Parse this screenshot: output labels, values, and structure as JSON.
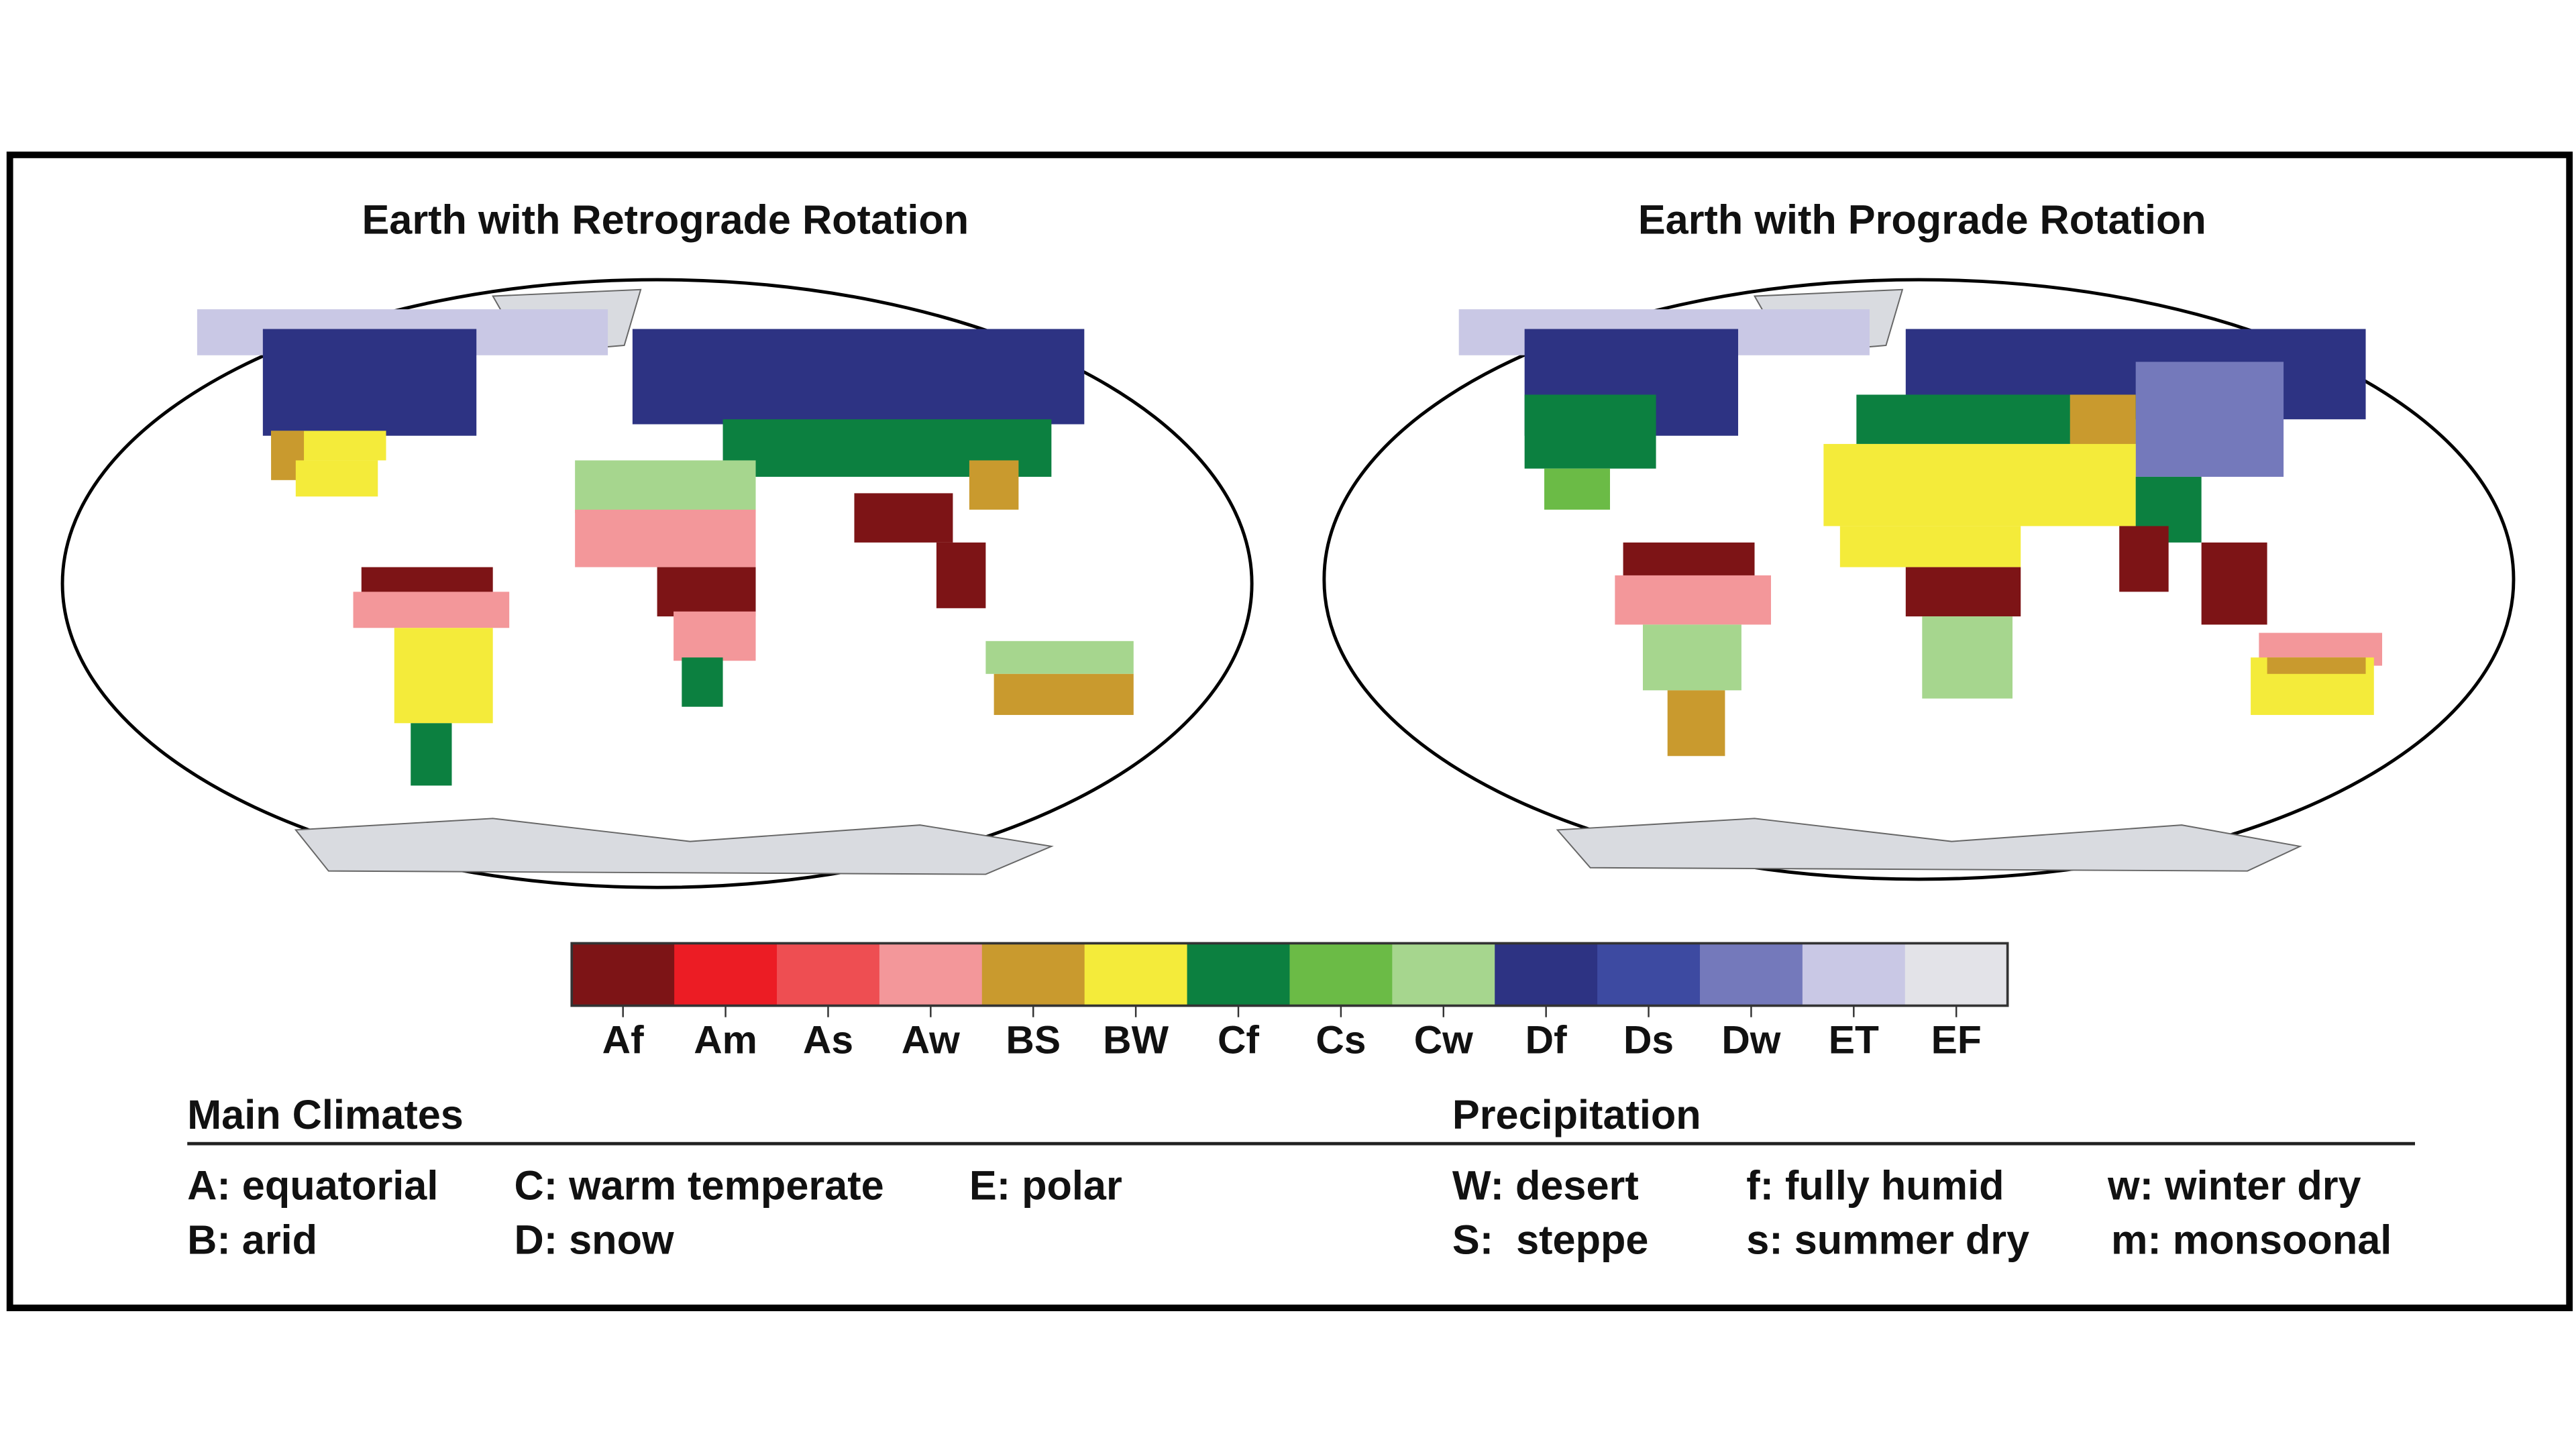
{
  "maps": [
    {
      "title": "Earth with Retrograde Rotation"
    },
    {
      "title": "Earth with Prograde Rotation"
    }
  ],
  "colorbar": {
    "classes": [
      {
        "code": "Af",
        "color": "#7d1416"
      },
      {
        "code": "Am",
        "color": "#ec1c24"
      },
      {
        "code": "As",
        "color": "#ee4e52"
      },
      {
        "code": "Aw",
        "color": "#f3979a"
      },
      {
        "code": "BS",
        "color": "#c99a2e"
      },
      {
        "code": "BW",
        "color": "#f4eb3a"
      },
      {
        "code": "Cf",
        "color": "#0c8040"
      },
      {
        "code": "Cs",
        "color": "#6bbb46"
      },
      {
        "code": "Cw",
        "color": "#a6d68e"
      },
      {
        "code": "Df",
        "color": "#2d3383"
      },
      {
        "code": "Ds",
        "color": "#3d4aa1"
      },
      {
        "code": "Dw",
        "color": "#7479bb"
      },
      {
        "code": "ET",
        "color": "#c9c8e5"
      },
      {
        "code": "EF",
        "color": "#e3e3e8"
      }
    ]
  },
  "legend": {
    "main_header": "Main Climates",
    "precip_header": "Precipitation",
    "main": [
      "A: equatorial",
      "C: warm temperate",
      "E: polar",
      "B: arid",
      "D: snow"
    ],
    "precip": [
      "W: desert",
      "f: fully humid",
      "w: winter dry",
      "S:  steppe",
      "s: summer dry",
      "m: monsoonal"
    ]
  }
}
